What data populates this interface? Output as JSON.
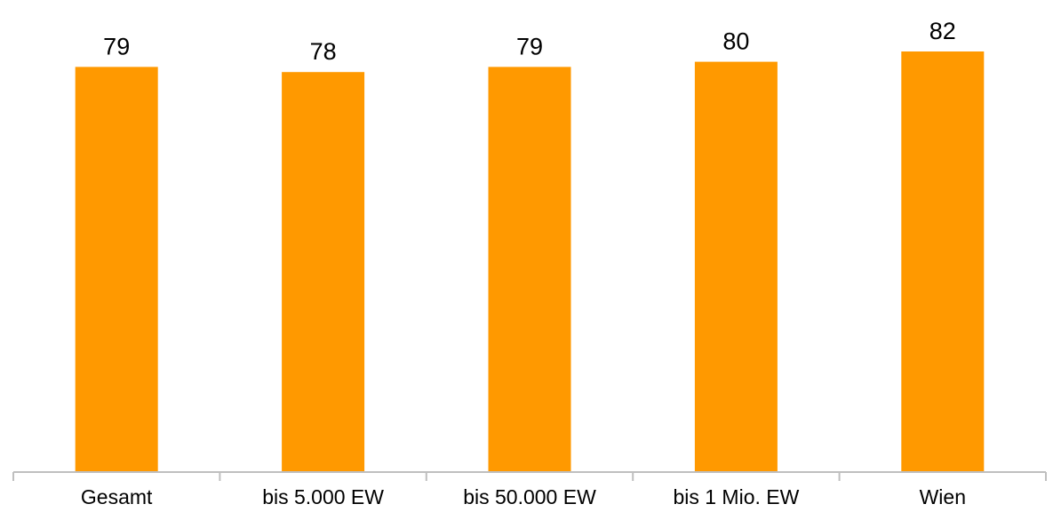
{
  "chart_data": {
    "type": "bar",
    "title": "",
    "xlabel": "",
    "ylabel": "",
    "categories": [
      "Gesamt",
      "bis 5.000 EW",
      "bis 50.000 EW",
      "bis 1 Mio. EW",
      "Wien"
    ],
    "values": [
      79,
      78,
      79,
      80,
      82
    ],
    "ylim": [
      0,
      90
    ],
    "grid": false,
    "legend": "none",
    "bar_color": "#FF9900",
    "axis_color": "#BFBFBF"
  }
}
